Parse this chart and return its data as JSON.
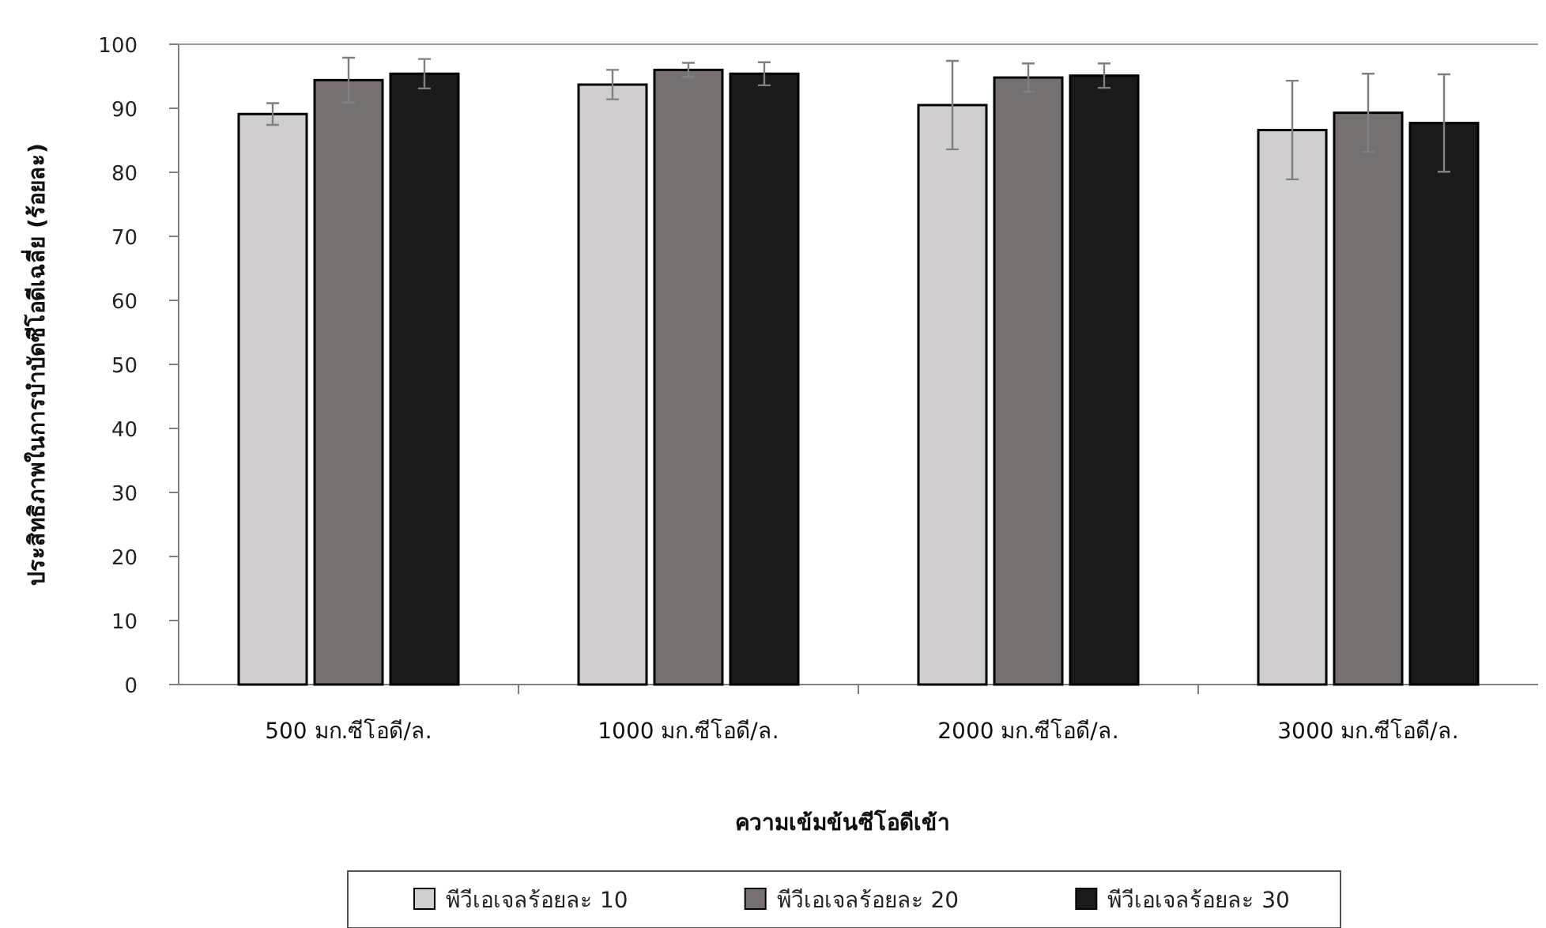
{
  "chart_data": {
    "type": "bar",
    "xlabel": "ความเข้มข้นซีโอดีเข้า",
    "ylabel": "ประสิทธิภาพในการบำบัดซีโอดีเฉลี่ย (ร้อยละ)",
    "categories": [
      "500 มก.ซีโอดี/ล.",
      "1000 มก.ซีโอดี/ล.",
      "2000 มก.ซีโอดี/ล.",
      "3000 มก.ซีโอดี/ล."
    ],
    "series": [
      {
        "name": "พีวีเอเจลร้อยละ 10",
        "color": "#d0cecf",
        "values": [
          89.1,
          93.7,
          90.5,
          86.6
        ],
        "errors": [
          1.7,
          2.3,
          6.9,
          7.7
        ]
      },
      {
        "name": "พีวีเอเจลร้อยละ 20",
        "color": "#767170",
        "values": [
          94.4,
          96.0,
          94.8,
          89.3
        ],
        "errors": [
          3.5,
          1.1,
          2.2,
          6.1
        ]
      },
      {
        "name": "พีวีเอเจลร้อยละ 30",
        "color": "#1a1a1a",
        "values": [
          95.4,
          95.4,
          95.1,
          87.7
        ],
        "errors": [
          2.3,
          1.8,
          1.9,
          7.6
        ]
      }
    ],
    "ylim": [
      0,
      100
    ],
    "yticks": [
      0,
      10,
      20,
      30,
      40,
      50,
      60,
      70,
      80,
      90,
      100
    ],
    "grid": false,
    "legend": "bottom"
  }
}
